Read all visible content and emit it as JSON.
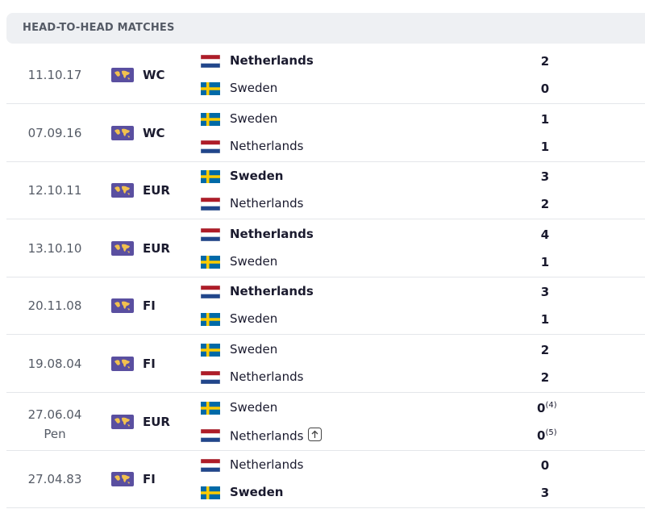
{
  "header": {
    "title": "HEAD-TO-HEAD MATCHES"
  },
  "matches": [
    {
      "date": "11.10.17",
      "competition": "WC",
      "teams": [
        {
          "name": "Netherlands",
          "flag": "nl",
          "score": 2,
          "bold": true
        },
        {
          "name": "Sweden",
          "flag": "se",
          "score": 0,
          "bold": false
        }
      ]
    },
    {
      "date": "07.09.16",
      "competition": "WC",
      "teams": [
        {
          "name": "Sweden",
          "flag": "se",
          "score": 1,
          "bold": false
        },
        {
          "name": "Netherlands",
          "flag": "nl",
          "score": 1,
          "bold": false
        }
      ]
    },
    {
      "date": "12.10.11",
      "competition": "EUR",
      "teams": [
        {
          "name": "Sweden",
          "flag": "se",
          "score": 3,
          "bold": true
        },
        {
          "name": "Netherlands",
          "flag": "nl",
          "score": 2,
          "bold": false
        }
      ]
    },
    {
      "date": "13.10.10",
      "competition": "EUR",
      "teams": [
        {
          "name": "Netherlands",
          "flag": "nl",
          "score": 4,
          "bold": true
        },
        {
          "name": "Sweden",
          "flag": "se",
          "score": 1,
          "bold": false
        }
      ]
    },
    {
      "date": "20.11.08",
      "competition": "FI",
      "teams": [
        {
          "name": "Netherlands",
          "flag": "nl",
          "score": 3,
          "bold": true
        },
        {
          "name": "Sweden",
          "flag": "se",
          "score": 1,
          "bold": false
        }
      ]
    },
    {
      "date": "19.08.04",
      "competition": "FI",
      "teams": [
        {
          "name": "Sweden",
          "flag": "se",
          "score": 2,
          "bold": false
        },
        {
          "name": "Netherlands",
          "flag": "nl",
          "score": 2,
          "bold": false
        }
      ]
    },
    {
      "date": "27.06.04",
      "note": "Pen",
      "competition": "EUR",
      "teams": [
        {
          "name": "Sweden",
          "flag": "se",
          "score": 0,
          "penalty": "(4)",
          "bold": false
        },
        {
          "name": "Netherlands",
          "flag": "nl",
          "score": 0,
          "penalty": "(5)",
          "bold": false,
          "advanced": true
        }
      ]
    },
    {
      "date": "27.04.83",
      "competition": "FI",
      "teams": [
        {
          "name": "Netherlands",
          "flag": "nl",
          "score": 0,
          "bold": false
        },
        {
          "name": "Sweden",
          "flag": "se",
          "score": 3,
          "bold": true
        }
      ]
    }
  ]
}
